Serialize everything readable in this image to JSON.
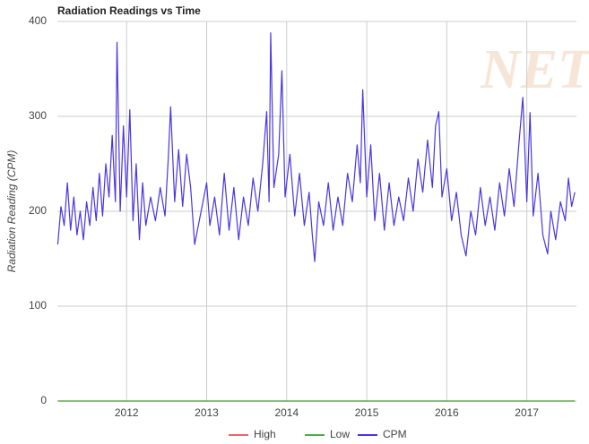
{
  "chart_data": {
    "type": "line",
    "title": "Radiation Readings vs Time",
    "y_label": "Radiation Reading (CPM)",
    "watermark": "NETC.c",
    "xlim": [
      2011.135,
      2017.62
    ],
    "xticks": [
      2012,
      2013,
      2014,
      2015,
      2016,
      2017
    ],
    "ylim": [
      0,
      400
    ],
    "yticks": [
      0,
      100,
      200,
      300,
      400
    ],
    "grid": true,
    "legend": "bottom",
    "series": [
      {
        "name": "High",
        "color": "#e06a6a",
        "x": [
          2011.14,
          2017.6
        ],
        "values": [
          0,
          0
        ]
      },
      {
        "name": "Low",
        "color": "#4caa4c",
        "x": [
          2011.14,
          2017.6
        ],
        "values": [
          0,
          0
        ]
      },
      {
        "name": "CPM",
        "color": "#4a35e0",
        "x": [
          2011.14,
          2011.18,
          2011.22,
          2011.26,
          2011.3,
          2011.34,
          2011.38,
          2011.42,
          2011.46,
          2011.5,
          2011.54,
          2011.58,
          2011.62,
          2011.66,
          2011.7,
          2011.74,
          2011.78,
          2011.82,
          2011.86,
          2011.88,
          2011.92,
          2011.96,
          2012.0,
          2012.04,
          2012.08,
          2012.12,
          2012.16,
          2012.2,
          2012.24,
          2012.3,
          2012.36,
          2012.42,
          2012.48,
          2012.52,
          2012.55,
          2012.6,
          2012.65,
          2012.7,
          2012.75,
          2012.8,
          2012.85,
          2013.0,
          2013.04,
          2013.1,
          2013.16,
          2013.22,
          2013.28,
          2013.34,
          2013.4,
          2013.46,
          2013.52,
          2013.58,
          2013.64,
          2013.7,
          2013.75,
          2013.78,
          2013.8,
          2013.84,
          2013.9,
          2013.94,
          2013.98,
          2014.04,
          2014.1,
          2014.16,
          2014.22,
          2014.28,
          2014.32,
          2014.35,
          2014.4,
          2014.46,
          2014.52,
          2014.58,
          2014.64,
          2014.7,
          2014.76,
          2014.82,
          2014.88,
          2014.92,
          2014.95,
          2015.0,
          2015.05,
          2015.1,
          2015.16,
          2015.22,
          2015.28,
          2015.34,
          2015.4,
          2015.46,
          2015.52,
          2015.58,
          2015.64,
          2015.7,
          2015.76,
          2015.82,
          2015.86,
          2015.9,
          2015.94,
          2016.0,
          2016.06,
          2016.12,
          2016.18,
          2016.24,
          2016.3,
          2016.36,
          2016.42,
          2016.48,
          2016.54,
          2016.6,
          2016.66,
          2016.72,
          2016.78,
          2016.84,
          2016.9,
          2016.95,
          2017.0,
          2017.04,
          2017.08,
          2017.14,
          2017.2,
          2017.26,
          2017.3,
          2017.36,
          2017.42,
          2017.48,
          2017.52,
          2017.56,
          2017.6
        ],
        "values": [
          165,
          205,
          185,
          230,
          180,
          215,
          175,
          200,
          170,
          210,
          185,
          225,
          190,
          240,
          195,
          250,
          215,
          280,
          210,
          378,
          200,
          290,
          215,
          307,
          190,
          250,
          170,
          230,
          185,
          215,
          190,
          225,
          195,
          255,
          310,
          210,
          265,
          205,
          260,
          225,
          165,
          230,
          185,
          215,
          175,
          240,
          180,
          225,
          170,
          215,
          185,
          235,
          200,
          250,
          305,
          210,
          388,
          225,
          260,
          348,
          215,
          260,
          195,
          240,
          185,
          220,
          175,
          147,
          210,
          185,
          230,
          180,
          215,
          185,
          240,
          210,
          270,
          230,
          328,
          215,
          270,
          190,
          240,
          180,
          230,
          185,
          215,
          190,
          235,
          200,
          255,
          220,
          275,
          225,
          290,
          305,
          215,
          245,
          190,
          220,
          175,
          153,
          200,
          175,
          225,
          185,
          215,
          180,
          230,
          195,
          245,
          205,
          270,
          320,
          210,
          304,
          195,
          240,
          175,
          155,
          200,
          170,
          210,
          190,
          235,
          205,
          220
        ]
      }
    ]
  }
}
